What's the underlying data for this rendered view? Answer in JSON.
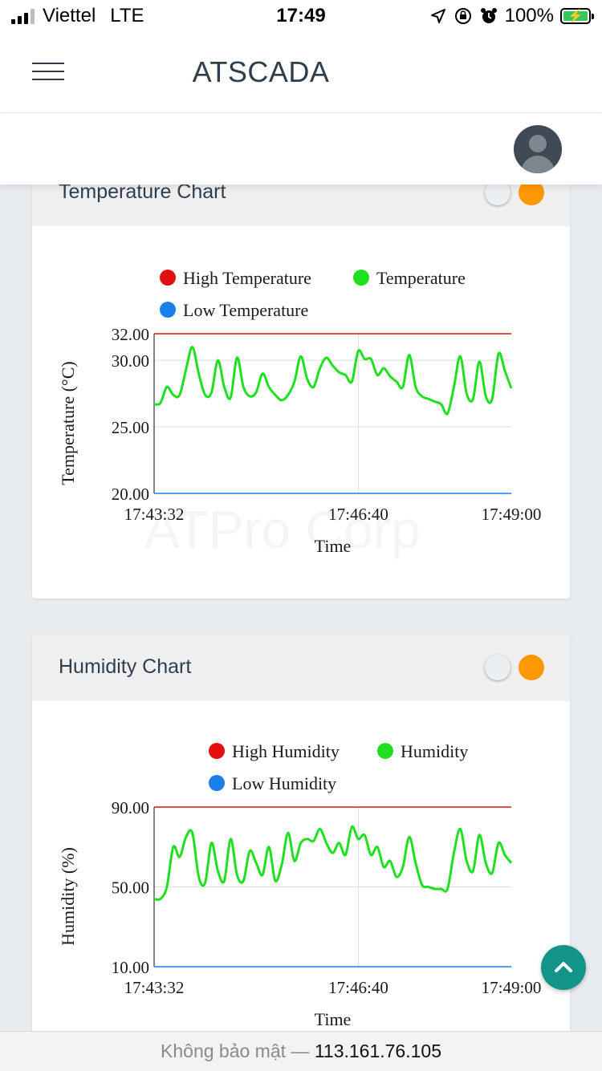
{
  "status_bar": {
    "carrier": "Viettel",
    "network": "LTE",
    "time": "17:49",
    "battery": "100%"
  },
  "header": {
    "title": "ATSCADA"
  },
  "watermark": "ATPro Corp",
  "temperature_card": {
    "title": "Temperature Chart",
    "legend_high": "High Temperature",
    "legend_value": "Temperature",
    "legend_low": "Low Temperature",
    "ylabel": "Temperature (°C)",
    "xlabel": "Time"
  },
  "humidity_card": {
    "title": "Humidity Chart",
    "legend_high": "High Humidity",
    "legend_value": "Humidity",
    "legend_low": "Low Humidity",
    "ylabel": "Humidity (%)",
    "xlabel": "Time"
  },
  "url_bar": {
    "security": "Không bảo mật —",
    "host": "113.161.76.105"
  },
  "colors": {
    "high": "#e21010",
    "value": "#1fe01f",
    "low": "#1a7fe6",
    "accent": "#ff9800",
    "fab": "#139488"
  },
  "icons": {
    "menu": "hamburger-icon",
    "user": "user-avatar-icon",
    "scroll_top": "chevron-up-icon"
  },
  "chart_data": [
    {
      "type": "line",
      "title": "",
      "xlabel": "Time",
      "ylabel": "Temperature (°C)",
      "x_ticks": [
        "17:43:32",
        "17:46:40",
        "17:49:00"
      ],
      "y_ticks": [
        "20.00",
        "25.00",
        "30.00",
        "32.00"
      ],
      "ylim": [
        20,
        32
      ],
      "grid": true,
      "legend": "top",
      "series": [
        {
          "name": "High Temperature",
          "color": "#e21010",
          "constant": 32
        },
        {
          "name": "Temperature",
          "color": "#1fe01f",
          "values": [
            26.7,
            26.8,
            28.0,
            27.4,
            27.4,
            29.3,
            31.0,
            29.0,
            27.4,
            27.6,
            30.0,
            28.0,
            27.2,
            30.2,
            28.0,
            27.3,
            27.6,
            29.0,
            28.0,
            27.4,
            27.0,
            27.4,
            28.4,
            30.3,
            28.6,
            28.0,
            29.4,
            30.2,
            29.6,
            29.1,
            28.9,
            28.4,
            30.7,
            30.1,
            30.1,
            28.9,
            29.4,
            28.8,
            28.4,
            28.0,
            30.4,
            28.0,
            27.3,
            27.1,
            26.9,
            26.7,
            26.0,
            28.0,
            30.3,
            27.5,
            27.1,
            29.9,
            27.3,
            27.1,
            30.5,
            29.2,
            27.9
          ]
        },
        {
          "name": "Low Temperature",
          "color": "#1a7fe6",
          "constant": 20
        }
      ]
    },
    {
      "type": "line",
      "title": "",
      "xlabel": "Time",
      "ylabel": "Humidity (%)",
      "x_ticks": [
        "17:43:32",
        "17:46:40",
        "17:49:00"
      ],
      "y_ticks": [
        "10.00",
        "50.00",
        "90.00"
      ],
      "ylim": [
        10,
        90
      ],
      "grid": true,
      "legend": "top",
      "series": [
        {
          "name": "High Humidity",
          "color": "#e21010",
          "constant": 90
        },
        {
          "name": "Humidity",
          "color": "#1fe01f",
          "values": [
            44,
            44,
            50,
            70,
            65,
            75,
            77,
            55,
            52,
            72,
            58,
            53,
            74,
            56,
            53,
            68,
            62,
            56,
            70,
            53,
            61,
            77,
            63,
            72,
            74,
            73,
            79,
            72,
            67,
            72,
            66,
            80,
            74,
            76,
            66,
            70,
            60,
            63,
            55,
            60,
            75,
            62,
            51,
            50,
            49,
            49,
            49,
            67,
            79,
            63,
            58,
            76,
            62,
            57,
            72,
            66,
            62
          ]
        },
        {
          "name": "Low Humidity",
          "color": "#1a7fe6",
          "constant": 10
        }
      ]
    }
  ]
}
